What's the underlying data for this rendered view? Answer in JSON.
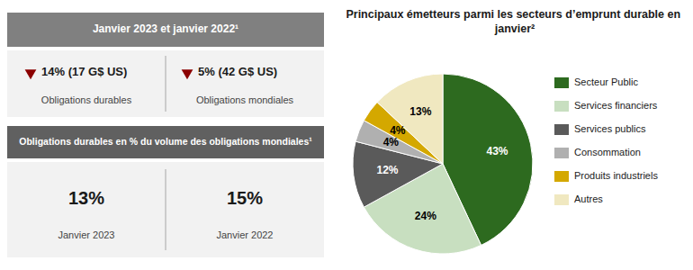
{
  "chart_data": {
    "type": "pie",
    "title": "Principaux émetteurs parmi les secteurs d’emprunt durable en janvier²",
    "categories": [
      "Secteur Public",
      "Services financiers",
      "Services publics",
      "Consommation",
      "Produits industriels",
      "Autres"
    ],
    "values": [
      43,
      24,
      12,
      4,
      4,
      13
    ],
    "value_labels": [
      "43%",
      "24%",
      "12%",
      "4%",
      "4%",
      "13%"
    ],
    "colors": [
      "#2d6a1f",
      "#c8dfc0",
      "#5a5a5a",
      "#b0b0b0",
      "#d4a800",
      "#f0e8c0"
    ],
    "data_labels": true,
    "legend": "right",
    "annotations": [
      "Janvier 2023 et janvier 2022¹",
      "14% (17 G$ US)",
      "Obligations durables",
      "5% (42 G$ US)",
      "Obligations mondiales",
      "Obligations durables en % du volume des obligations mondiales¹",
      "13%",
      "Janvier 2023",
      "15%",
      "Janvier 2022"
    ]
  }
}
